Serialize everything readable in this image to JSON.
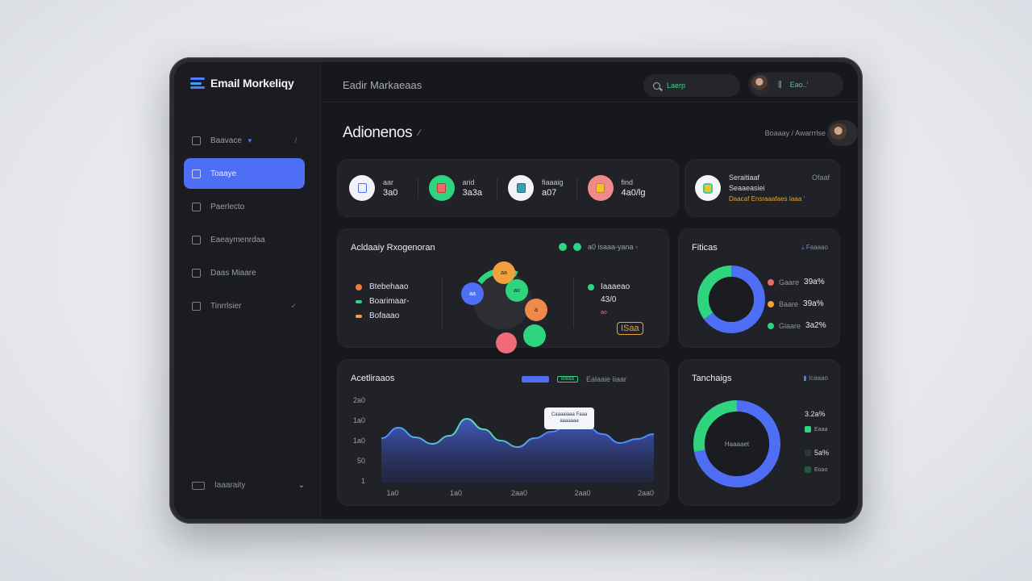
{
  "app": {
    "brand": "Email Morkeliqy",
    "top_title": "Eadir Markaeaas",
    "search_text": "Laerp",
    "user_label": "Eao..’",
    "page_title": "Adionenos",
    "page_meta": "Boaaay / Awarrrlse"
  },
  "sidebar": {
    "items": [
      {
        "label": "Baavace",
        "active": false
      },
      {
        "label": "Toaaye",
        "active": true
      },
      {
        "label": "Paerlecto",
        "active": false
      },
      {
        "label": "Eaeaymenrdaa",
        "active": false
      },
      {
        "label": "Daas Miaare",
        "active": false
      },
      {
        "label": "Tinrrlsier",
        "active": false
      }
    ],
    "footer": "Iaaaraity"
  },
  "stats": [
    {
      "label": "aar",
      "value": "3a0",
      "color": "#f1f3f8"
    },
    {
      "label": "arid",
      "value": "3a3a",
      "color": "#2fd47f"
    },
    {
      "label": "fiaaaig",
      "value": "a07",
      "color": "#f1f3f8"
    },
    {
      "label": "find",
      "value": "4a0/lg",
      "color": "#f08a8a"
    }
  ],
  "promo": {
    "title": "Seraitiaaf",
    "side": "Ofaaf",
    "line2": "Seaaeasiei",
    "sub": "Daacaf  Ensraaafaes  Iaaa ‘"
  },
  "audience": {
    "title": "Acldaaiy Rxogenoran",
    "legend_top": "a0   isaaa-yana ◦",
    "list": [
      {
        "label": "Btebehaao",
        "color": "#f07a3e"
      },
      {
        "label": "Boarimaar-",
        "color": "#2fd47f"
      },
      {
        "label": "Bofaaao",
        "color": "#f0a13e"
      }
    ],
    "bubbles": [
      {
        "label": "aa",
        "color": "#f0a13e"
      },
      {
        "label": "aa",
        "color": "#4d6ef5"
      },
      {
        "label": "ao",
        "color": "#2fd47f"
      },
      {
        "label": "a",
        "color": "#f08a4a"
      },
      {
        "label": "",
        "color": "#2fd47f"
      },
      {
        "label": "",
        "color": "#f06a7a"
      }
    ],
    "right_label": "Iaaaeao",
    "right_value": "43/0",
    "right_sub": "ao",
    "badge": "ISaa"
  },
  "fitness": {
    "title": "Fiticas",
    "link": "Faaaao",
    "legend": [
      {
        "label": "Gaare",
        "value": "39a%",
        "color": "#f06a6a"
      },
      {
        "label": "Baare",
        "value": "39a%",
        "color": "#f0a13e"
      },
      {
        "label": "Giaare",
        "value": "3a2%",
        "color": "#2fd47f"
      }
    ],
    "chart_data": {
      "type": "pie",
      "values": [
        65,
        35
      ],
      "colors": [
        "#4d6ef5",
        "#2fd47f"
      ]
    }
  },
  "analytics": {
    "title": "Acetliraaos",
    "legend_a": "Baaa",
    "legend_b": "Ealaaie  Iiaar",
    "tooltip": "Caaaaiaaa Faaa aaaaaaa",
    "chart_data": {
      "type": "area",
      "x_ticks": [
        "1a0",
        "1a0",
        "2aa0",
        "2aa0",
        "2aa0"
      ],
      "y_ticks": [
        "2a0",
        "1a0",
        "1a0",
        "50",
        "1"
      ],
      "values": [
        55,
        68,
        56,
        48,
        58,
        79,
        66,
        52,
        44,
        55,
        63,
        72,
        70,
        60,
        49,
        54,
        60
      ],
      "ylim": [
        0,
        100
      ]
    }
  },
  "channels": {
    "title": "Tanchaigs",
    "link": "Icaaao",
    "legend": [
      {
        "label": "3.2a%",
        "color": ""
      },
      {
        "label": "Eaaa",
        "color": "#2fd47f"
      },
      {
        "label": "5a%",
        "color": "#2a3a30"
      },
      {
        "label": "Eoao",
        "color": "#2fd47f"
      }
    ],
    "chart_data": {
      "type": "pie",
      "values": [
        72,
        28
      ],
      "colors": [
        "#4d6ef5",
        "#2fd47f"
      ],
      "center_label": "Haaaaet"
    }
  }
}
